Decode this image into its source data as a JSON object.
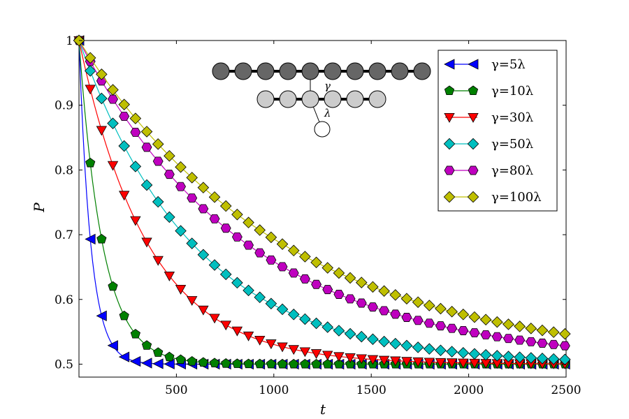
{
  "chart_data": {
    "type": "line",
    "xlabel": "t",
    "ylabel": "P",
    "xlim": [
      0,
      2500
    ],
    "ylim": [
      0.48,
      1.0
    ],
    "xticks": [
      500,
      1000,
      1500,
      2000,
      2500
    ],
    "xtick_labels": [
      "500",
      "1000",
      "1500",
      "2000",
      "2500"
    ],
    "yticks": [
      0.5,
      0.6,
      0.7,
      0.8,
      0.9,
      1.0
    ],
    "ytick_labels": [
      "0.5",
      "0.6",
      "0.7",
      "0.8",
      "0.9",
      "1"
    ],
    "legend_position": "top-right",
    "grid": false,
    "series": [
      {
        "name": "γ=5λ",
        "rate": 1.64,
        "color": "#0000ff",
        "marker": "triangle-left"
      },
      {
        "name": "γ=10λ",
        "rate": 0.82,
        "color": "#008000",
        "marker": "pentagon"
      },
      {
        "name": "γ=30λ",
        "rate": 0.28,
        "color": "#ff0000",
        "marker": "triangle-down"
      },
      {
        "name": "γ=50λ",
        "rate": 0.17,
        "color": "#00bfbf",
        "marker": "diamond"
      },
      {
        "name": "γ=80λ",
        "rate": 0.115,
        "color": "#bf00bf",
        "marker": "hexagon"
      },
      {
        "name": "γ=100λ",
        "rate": 0.095,
        "color": "#bfbf00",
        "marker": "diamond"
      }
    ],
    "x_start": 0,
    "x_step": 58,
    "x_end": 2500,
    "formula": "P = 0.5 + 0.5*exp(-rate * t / 100)",
    "inset": {
      "labels": [
        "γ",
        "λ"
      ],
      "top_chain_nodes": 10,
      "middle_chain_nodes": 6,
      "top_color": "#666666",
      "middle_color": "#cccccc",
      "bottom_color": "#ffffff"
    }
  }
}
